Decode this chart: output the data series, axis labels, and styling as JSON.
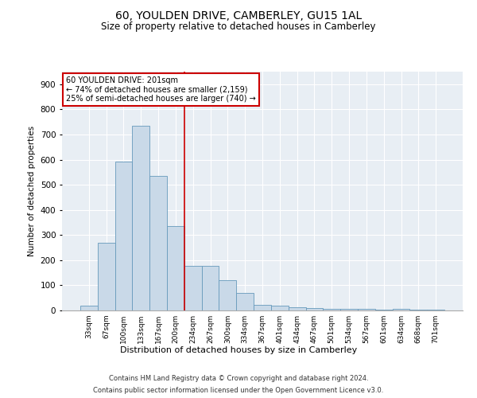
{
  "title": "60, YOULDEN DRIVE, CAMBERLEY, GU15 1AL",
  "subtitle": "Size of property relative to detached houses in Camberley",
  "xlabel": "Distribution of detached houses by size in Camberley",
  "ylabel": "Number of detached properties",
  "bar_labels": [
    "33sqm",
    "67sqm",
    "100sqm",
    "133sqm",
    "167sqm",
    "200sqm",
    "234sqm",
    "267sqm",
    "300sqm",
    "334sqm",
    "367sqm",
    "401sqm",
    "434sqm",
    "467sqm",
    "501sqm",
    "534sqm",
    "567sqm",
    "601sqm",
    "634sqm",
    "668sqm",
    "701sqm"
  ],
  "bar_values": [
    20,
    270,
    593,
    735,
    535,
    335,
    178,
    178,
    120,
    70,
    22,
    20,
    12,
    8,
    7,
    7,
    5,
    2,
    6,
    2,
    2
  ],
  "bar_color": "#c9d9e8",
  "bar_edge_color": "#6699bb",
  "annotation_box_text": "60 YOULDEN DRIVE: 201sqm\n← 74% of detached houses are smaller (2,159)\n25% of semi-detached houses are larger (740) →",
  "annotation_box_color": "#cc0000",
  "background_color": "#e8eef4",
  "grid_color": "#ffffff",
  "ylim": [
    0,
    950
  ],
  "yticks": [
    0,
    100,
    200,
    300,
    400,
    500,
    600,
    700,
    800,
    900
  ],
  "footer_line1": "Contains HM Land Registry data © Crown copyright and database right 2024.",
  "footer_line2": "Contains public sector information licensed under the Open Government Licence v3.0."
}
